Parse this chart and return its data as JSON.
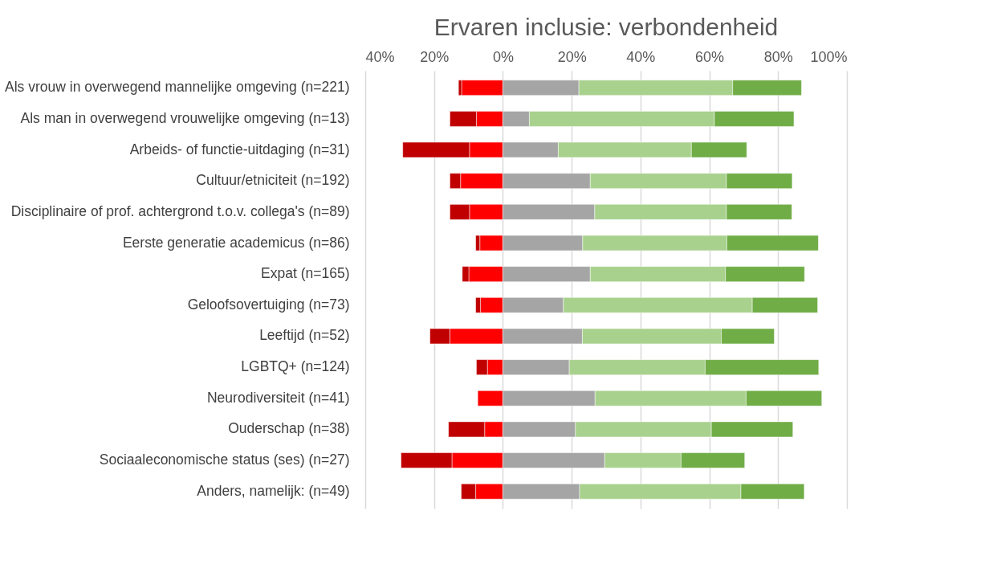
{
  "chart_data": {
    "type": "bar",
    "orientation": "horizontal",
    "stacked": true,
    "title": "Ervaren inclusie: verbondenheid",
    "categories": [
      "Als vrouw in overwegend mannelijke omgeving (n=221)",
      "Als man in overwegend vrouwelijke omgeving (n=13)",
      "Arbeids- of functie-uitdaging (n=31)",
      "Cultuur/etniciteit (n=192)",
      "Disciplinaire of prof. achtergrond t.o.v. collega's (n=89)",
      "Eerste generatie academicus (n=86)",
      "Expat (n=165)",
      "Geloofsovertuiging (n=73)",
      "Leeftijd (n=52)",
      "LGBTQ+ (n=124)",
      "Neurodiversiteit (n=41)",
      "Ouderschap (n=38)",
      "Sociaaleconomische status (ses) (n=27)",
      "Anders, namelijk: (n=49)"
    ],
    "series": [
      {
        "color": "#ff0000",
        "values": [
          -12.0,
          -7.7,
          -9.7,
          -12.3,
          -9.7,
          -6.7,
          -9.9,
          -6.5,
          -15.4,
          -4.5,
          -7.3,
          -5.3,
          -14.8,
          -7.9
        ]
      },
      {
        "color": "#c00000",
        "values": [
          -0.9,
          -7.7,
          -19.4,
          -3.1,
          -5.7,
          -1.2,
          -1.9,
          -1.4,
          -5.8,
          -3.2,
          null,
          -10.5,
          -14.8,
          -4.2
        ]
      },
      {
        "color": "#a5a5a5",
        "values": [
          22.1,
          7.7,
          16.1,
          25.4,
          26.7,
          23.2,
          25.4,
          17.6,
          23.1,
          19.3,
          26.8,
          21.1,
          29.6,
          22.3
        ]
      },
      {
        "color": "#a9d18e",
        "values": [
          44.7,
          53.8,
          38.7,
          39.6,
          38.3,
          41.9,
          39.3,
          54.9,
          40.4,
          39.5,
          43.9,
          39.5,
          22.2,
          46.9
        ]
      },
      {
        "color": "#70ad47",
        "values": [
          20.0,
          23.1,
          16.1,
          19.1,
          19.0,
          26.6,
          23.0,
          19.0,
          15.4,
          33.0,
          22.0,
          23.7,
          18.5,
          18.4
        ]
      }
    ],
    "xlim": [
      -40,
      100
    ],
    "xticks": [
      {
        "value": -40,
        "label": "40%"
      },
      {
        "value": -20,
        "label": "20%"
      },
      {
        "value": 0,
        "label": "0%"
      },
      {
        "value": 20,
        "label": "20%"
      },
      {
        "value": 40,
        "label": "40%"
      },
      {
        "value": 60,
        "label": "60%"
      },
      {
        "value": 80,
        "label": "80%"
      },
      {
        "value": 100,
        "label": "100%"
      }
    ],
    "grid": "x",
    "legend": false
  }
}
